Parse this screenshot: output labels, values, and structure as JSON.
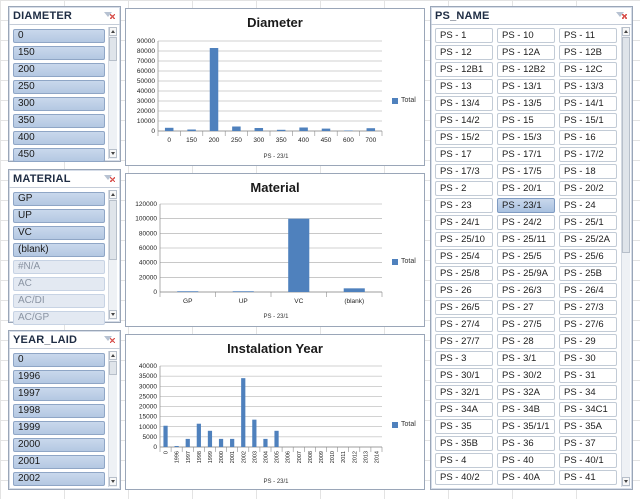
{
  "slicers": {
    "diameter": {
      "title": "DIAMETER",
      "items": [
        "0",
        "150",
        "200",
        "250",
        "300",
        "350",
        "400",
        "450"
      ]
    },
    "material": {
      "title": "MATERIAL",
      "items": [
        "GP",
        "UP",
        "VC",
        "(blank)",
        "#N/A",
        "AC",
        "AC/DI",
        "AC/GP"
      ],
      "dim_from": 4
    },
    "year_laid": {
      "title": "YEAR_LAID",
      "items": [
        "0",
        "1996",
        "1997",
        "1998",
        "1999",
        "2000",
        "2001",
        "2002"
      ]
    },
    "ps_name": {
      "title": "PS_NAME",
      "selected": "PS - 23/1",
      "items": [
        "PS - 1",
        "PS - 10",
        "PS - 11",
        "PS - 12",
        "PS - 12A",
        "PS - 12B",
        "PS - 12B1",
        "PS - 12B2",
        "PS - 12C",
        "PS - 13",
        "PS - 13/1",
        "PS - 13/3",
        "PS - 13/4",
        "PS - 13/5",
        "PS - 14/1",
        "PS - 14/2",
        "PS - 15",
        "PS - 15/1",
        "PS - 15/2",
        "PS - 15/3",
        "PS - 16",
        "PS - 17",
        "PS - 17/1",
        "PS - 17/2",
        "PS - 17/3",
        "PS - 17/5",
        "PS - 18",
        "PS - 2",
        "PS - 20/1",
        "PS - 20/2",
        "PS - 23",
        "PS - 23/1",
        "PS - 24",
        "PS - 24/1",
        "PS - 24/2",
        "PS - 25/1",
        "PS - 25/10",
        "PS - 25/11",
        "PS - 25/2A",
        "PS - 25/4",
        "PS - 25/5",
        "PS - 25/6",
        "PS - 25/8",
        "PS - 25/9A",
        "PS - 25B",
        "PS - 26",
        "PS - 26/3",
        "PS - 26/4",
        "PS - 26/5",
        "PS - 27",
        "PS - 27/3",
        "PS - 27/4",
        "PS - 27/5",
        "PS - 27/6",
        "PS - 27/7",
        "PS - 28",
        "PS - 29",
        "PS - 3",
        "PS - 3/1",
        "PS - 30",
        "PS - 30/1",
        "PS - 30/2",
        "PS - 31",
        "PS - 32/1",
        "PS - 32A",
        "PS - 34",
        "PS - 34A",
        "PS - 34B",
        "PS - 34C1",
        "PS - 35",
        "PS - 35/1/1",
        "PS - 35A",
        "PS - 35B",
        "PS - 36",
        "PS - 37",
        "PS - 4",
        "PS - 40",
        "PS - 40/1",
        "PS - 40/2",
        "PS - 40A",
        "PS - 41"
      ]
    }
  },
  "colors": {
    "bar": "#4f81bd",
    "accent": "#b4c8e2"
  },
  "chart_data": [
    {
      "type": "bar",
      "title": "Diameter",
      "xlabel": "PS - 23/1",
      "legend": "Total",
      "legend_position": "right",
      "categories": [
        "0",
        "150",
        "200",
        "250",
        "300",
        "350",
        "400",
        "450",
        "600",
        "700"
      ],
      "values": [
        3200,
        1500,
        83000,
        4500,
        3000,
        1200,
        3500,
        2400,
        500,
        2800
      ],
      "yticks": [
        "0",
        "10000",
        "20000",
        "30000",
        "40000",
        "50000",
        "60000",
        "70000",
        "80000",
        "90000"
      ],
      "ylim": [
        0,
        90000
      ]
    },
    {
      "type": "bar",
      "title": "Material",
      "xlabel": "PS - 23/1",
      "legend": "Total",
      "legend_position": "right",
      "categories": [
        "GP",
        "UP",
        "VC",
        "(blank)"
      ],
      "values": [
        1000,
        1000,
        100000,
        5000
      ],
      "yticks": [
        "0",
        "20000",
        "40000",
        "60000",
        "80000",
        "100000",
        "120000"
      ],
      "ylim": [
        0,
        120000
      ]
    },
    {
      "type": "bar",
      "title": "Instalation Year",
      "xlabel": "PS - 23/1",
      "legend": "Total",
      "legend_position": "right",
      "categories": [
        "0",
        "1996",
        "1997",
        "1998",
        "1999",
        "2000",
        "2001",
        "2002",
        "2003",
        "2004",
        "2005",
        "2006",
        "2007",
        "2008",
        "2009",
        "2010",
        "2011",
        "2012",
        "2013",
        "2014"
      ],
      "values": [
        10500,
        500,
        4000,
        11500,
        8000,
        4000,
        4000,
        34000,
        13500,
        4000,
        8000,
        0,
        0,
        0,
        0,
        0,
        0,
        0,
        0,
        0
      ],
      "yticks": [
        "0",
        "5000",
        "10000",
        "15000",
        "20000",
        "25000",
        "30000",
        "35000",
        "40000"
      ],
      "ylim": [
        0,
        40000
      ]
    }
  ]
}
